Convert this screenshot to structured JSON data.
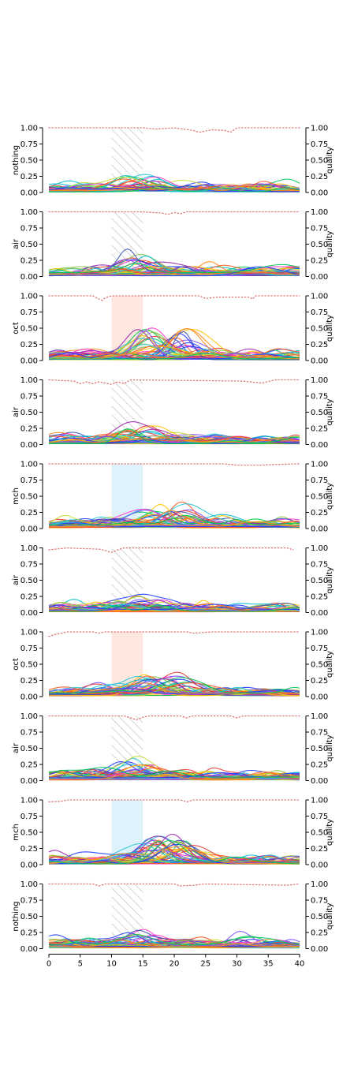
{
  "chart_data": {
    "type": "line",
    "layout": "10 stacked panels sharing an x axis; each panel has a left y axis (response) and a right y axis (quality)",
    "x_range": [
      0,
      40
    ],
    "x_ticks": [
      "0",
      "5",
      "10",
      "15",
      "20",
      "25",
      "30",
      "35",
      "40"
    ],
    "y_range": [
      0.0,
      1.0
    ],
    "y_ticks": [
      "0.00",
      "0.25",
      "0.50",
      "0.75",
      "1.00"
    ],
    "right_axis_label": "quality",
    "stimulus_window": [
      10,
      15
    ],
    "quality_line": {
      "style": "dotted",
      "color": "#e07070"
    },
    "panel_style_colors": {
      "air": "#bbbbbb",
      "nothing": "#bbbbbb",
      "oct": "#fde7df",
      "mch": "#dff1fb"
    },
    "series_palette": [
      "#1f3cff",
      "#ff8c1a",
      "#00c853",
      "#e53935",
      "#ff33cc",
      "#00bcd4",
      "#9c27b0",
      "#cddc39",
      "#ffc107",
      "#3f51b5",
      "#8bc34a",
      "#26c6da",
      "#7c4dff",
      "#ff5722"
    ],
    "panels": [
      {
        "ylabel": "nothing",
        "shading": "hatch",
        "quality": [
          [
            0,
            1.0
          ],
          [
            10,
            1.0
          ],
          [
            15,
            1.0
          ],
          [
            17,
            0.98
          ],
          [
            20,
            1.0
          ],
          [
            23,
            0.96
          ],
          [
            24,
            0.93
          ],
          [
            26,
            0.97
          ],
          [
            28,
            0.96
          ],
          [
            29,
            0.93
          ],
          [
            30,
            1.0
          ],
          [
            40,
            1.0
          ]
        ]
      },
      {
        "ylabel": "air",
        "shading": "hatch",
        "quality": [
          [
            0,
            1.0
          ],
          [
            15,
            1.0
          ],
          [
            18,
            0.98
          ],
          [
            19,
            0.96
          ],
          [
            20,
            0.99
          ],
          [
            21,
            0.97
          ],
          [
            22,
            1.0
          ],
          [
            40,
            1.0
          ]
        ]
      },
      {
        "ylabel": "oct",
        "shading": "fill-oct",
        "quality": [
          [
            0,
            1.0
          ],
          [
            7,
            1.0
          ],
          [
            8,
            0.95
          ],
          [
            8.5,
            0.93
          ],
          [
            9,
            0.97
          ],
          [
            10,
            1.0
          ],
          [
            24,
            1.0
          ],
          [
            25,
            0.96
          ],
          [
            27,
            0.98
          ],
          [
            32,
            0.98
          ],
          [
            32.5,
            0.95
          ],
          [
            33,
            1.0
          ],
          [
            40,
            1.0
          ]
        ]
      },
      {
        "ylabel": "air",
        "shading": "hatch",
        "quality": [
          [
            0,
            1.0
          ],
          [
            4,
            0.98
          ],
          [
            5,
            0.94
          ],
          [
            6,
            0.97
          ],
          [
            7,
            0.94
          ],
          [
            8,
            0.97
          ],
          [
            10,
            0.93
          ],
          [
            11,
            0.97
          ],
          [
            12,
            0.94
          ],
          [
            13,
            1.0
          ],
          [
            31,
            0.98
          ],
          [
            34,
            0.95
          ],
          [
            36,
            1.0
          ],
          [
            40,
            1.0
          ]
        ]
      },
      {
        "ylabel": "mch",
        "shading": "fill-mch",
        "quality": [
          [
            0,
            1.0
          ],
          [
            28,
            1.0
          ],
          [
            30,
            0.98
          ],
          [
            34,
            0.98
          ],
          [
            36,
            0.99
          ],
          [
            40,
            1.0
          ]
        ]
      },
      {
        "ylabel": "air",
        "shading": "hatch",
        "quality": [
          [
            0,
            0.97
          ],
          [
            3,
            1.0
          ],
          [
            5,
            0.99
          ],
          [
            8,
            0.98
          ],
          [
            9,
            0.96
          ],
          [
            10,
            0.93
          ],
          [
            11,
            0.97
          ],
          [
            12,
            1.0
          ],
          [
            38,
            1.0
          ],
          [
            39,
            0.97
          ]
        ]
      },
      {
        "ylabel": "oct",
        "shading": "fill-oct",
        "quality": [
          [
            0,
            0.93
          ],
          [
            1,
            0.96
          ],
          [
            3,
            1.0
          ],
          [
            7,
            1.0
          ],
          [
            8,
            0.98
          ],
          [
            9,
            1.0
          ],
          [
            22,
            1.0
          ],
          [
            23,
            0.98
          ],
          [
            26,
            1.0
          ],
          [
            40,
            1.0
          ]
        ]
      },
      {
        "ylabel": "air",
        "shading": "hatch",
        "quality": [
          [
            0,
            1.0
          ],
          [
            12,
            1.0
          ],
          [
            13,
            0.97
          ],
          [
            14,
            0.94
          ],
          [
            15,
            0.98
          ],
          [
            16,
            1.0
          ],
          [
            21,
            1.0
          ],
          [
            22,
            0.97
          ],
          [
            23,
            1.0
          ],
          [
            29,
            1.0
          ],
          [
            30,
            0.97
          ],
          [
            31,
            1.0
          ],
          [
            40,
            1.0
          ]
        ]
      },
      {
        "ylabel": "mch",
        "shading": "fill-mch",
        "quality": [
          [
            0,
            0.97
          ],
          [
            2,
            0.98
          ],
          [
            3,
            1.0
          ],
          [
            21,
            1.0
          ],
          [
            22,
            0.97
          ],
          [
            23,
            1.0
          ],
          [
            40,
            1.0
          ]
        ]
      },
      {
        "ylabel": "nothing",
        "shading": "hatch",
        "quality": [
          [
            0,
            1.0
          ],
          [
            7,
            1.0
          ],
          [
            8,
            0.97
          ],
          [
            9,
            1.0
          ],
          [
            20,
            1.0
          ],
          [
            21,
            0.97
          ],
          [
            23,
            0.98
          ],
          [
            25,
            1.0
          ],
          [
            38,
            0.98
          ],
          [
            40,
            1.0
          ]
        ]
      }
    ],
    "response_traces_per_panel": 45,
    "response_peak_ranges": [
      {
        "panel": 0,
        "typical_max": 0.2
      },
      {
        "panel": 1,
        "typical_max": 0.25
      },
      {
        "panel": 2,
        "typical_max": 0.47
      },
      {
        "panel": 3,
        "typical_max": 0.25
      },
      {
        "panel": 4,
        "typical_max": 0.33
      },
      {
        "panel": 5,
        "typical_max": 0.2
      },
      {
        "panel": 6,
        "typical_max": 0.25
      },
      {
        "panel": 7,
        "typical_max": 0.27
      },
      {
        "panel": 8,
        "typical_max": 0.38
      },
      {
        "panel": 9,
        "typical_max": 0.22
      }
    ]
  }
}
